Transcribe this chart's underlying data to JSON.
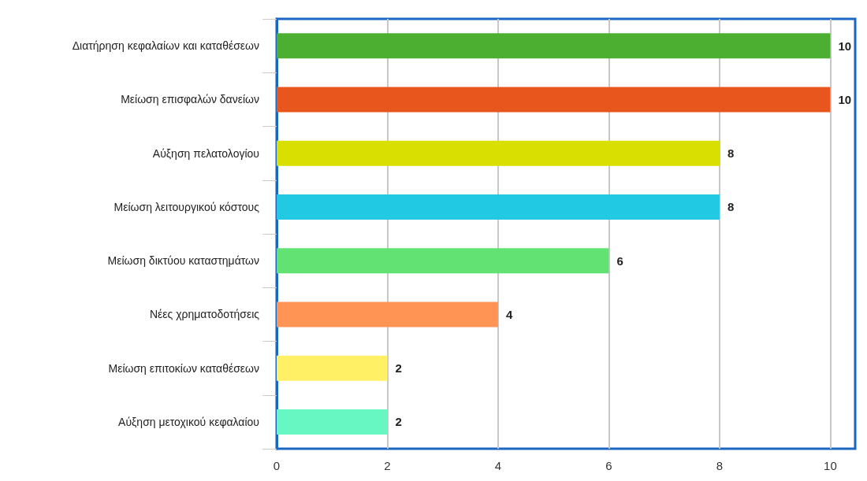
{
  "chart_data": {
    "type": "bar",
    "orientation": "horizontal",
    "categories": [
      "Διατήρηση κεφαλαίων και καταθέσεων",
      "Μείωση επισφαλών δανείων",
      "Αύξηση πελατολογίου",
      "Μείωση λειτουργικού κόστους",
      "Μείωση δικτύου καταστημάτων",
      "Νέες χρηματοδοτήσεις",
      "Μείωση επιτοκίων καταθέσεων",
      "Αύξηση μετοχικού κεφαλαίου"
    ],
    "values": [
      10,
      10,
      8,
      8,
      6,
      4,
      2,
      2
    ],
    "colors": [
      "#4daf32",
      "#e8561e",
      "#d9df00",
      "#22c9e2",
      "#62e272",
      "#ff9455",
      "#fff066",
      "#66f7c3"
    ],
    "xlim": [
      0,
      10.45
    ],
    "xticks": [
      0,
      2,
      4,
      6,
      8,
      10
    ],
    "grid": "x",
    "data_labels": true
  }
}
